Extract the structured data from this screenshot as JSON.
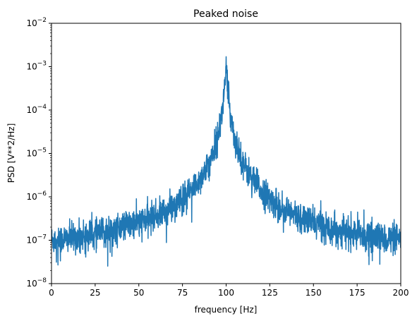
{
  "chart_data": {
    "type": "line",
    "title": "Peaked noise",
    "xlabel": "frequency [Hz]",
    "ylabel": "PSD [V**2/Hz]",
    "xlim": [
      0,
      200
    ],
    "ylim": [
      1e-08,
      0.01
    ],
    "yscale": "log",
    "grid": false,
    "x_ticks": [
      0,
      25,
      50,
      75,
      100,
      125,
      150,
      175,
      200
    ],
    "x_tick_labels": [
      "0",
      "25",
      "50",
      "75",
      "100",
      "125",
      "150",
      "175",
      "200"
    ],
    "y_ticks": [
      1e-08,
      1e-07,
      1e-06,
      1e-05,
      0.0001,
      0.001,
      0.01
    ],
    "y_tick_labels": [
      {
        "base": "10",
        "exp": "−8"
      },
      {
        "base": "10",
        "exp": "−7"
      },
      {
        "base": "10",
        "exp": "−6"
      },
      {
        "base": "10",
        "exp": "−5"
      },
      {
        "base": "10",
        "exp": "−4"
      },
      {
        "base": "10",
        "exp": "−3"
      },
      {
        "base": "10",
        "exp": "−2"
      }
    ],
    "series": [
      {
        "color": "#1f77b4",
        "envelope": {
          "x": [
            0,
            10,
            20,
            30,
            40,
            50,
            60,
            70,
            75,
            80,
            85,
            90,
            95,
            98,
            100,
            102,
            105,
            110,
            115,
            120,
            125,
            130,
            140,
            150,
            160,
            170,
            180,
            190,
            200
          ],
          "y": [
            1e-07,
            1.1e-07,
            1.3e-07,
            1.5e-07,
            2e-07,
            2.6e-07,
            3.6e-07,
            6e-07,
            8.5e-07,
            1.4e-06,
            2.5e-06,
            5.5e-06,
            2.2e-05,
            0.0001,
            0.001,
            0.0001,
            2.2e-05,
            5.5e-06,
            2.6e-06,
            1.4e-06,
            9e-07,
            6e-07,
            3.6e-07,
            2.6e-07,
            1.9e-07,
            1.5e-07,
            1.3e-07,
            1.1e-07,
            1e-07
          ]
        },
        "peak": {
          "x": 100,
          "y": 0.0017
        }
      }
    ]
  }
}
